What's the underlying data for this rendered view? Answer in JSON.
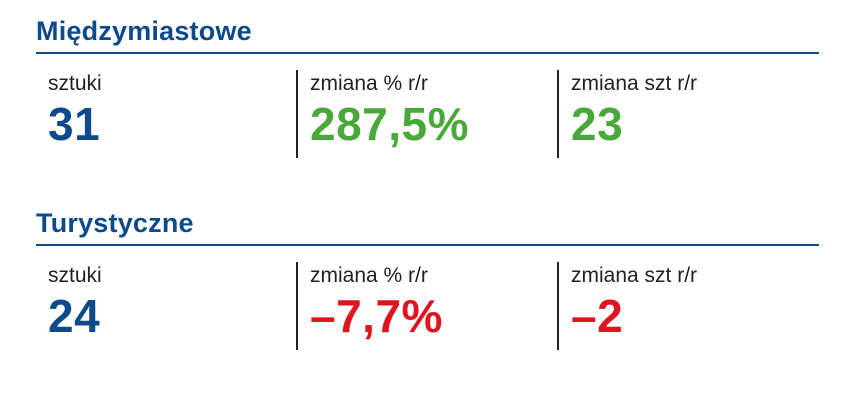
{
  "colors": {
    "heading": "#0d4a8c",
    "primary_value": "#0d4a8c",
    "positive": "#4aa83a",
    "negative": "#e0141e",
    "label": "#222222"
  },
  "sections": [
    {
      "title": "Międzymiastowe",
      "stats": [
        {
          "label": "sztuki",
          "value": "31",
          "tone": "primary_value"
        },
        {
          "label": "zmiana % r/r",
          "value": "287,5%",
          "tone": "positive"
        },
        {
          "label": "zmiana szt r/r",
          "value": "23",
          "tone": "positive"
        }
      ]
    },
    {
      "title": "Turystyczne",
      "stats": [
        {
          "label": "sztuki",
          "value": "24",
          "tone": "primary_value"
        },
        {
          "label": "zmiana % r/r",
          "value": "–7,7%",
          "tone": "negative"
        },
        {
          "label": "zmiana szt r/r",
          "value": "–2",
          "tone": "negative"
        }
      ]
    }
  ]
}
